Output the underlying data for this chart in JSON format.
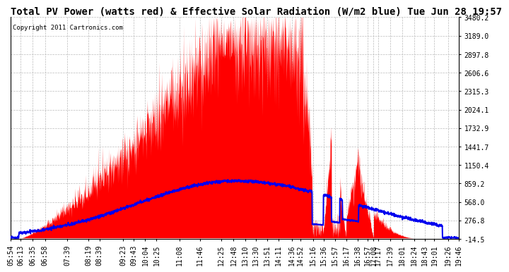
{
  "title": "Total PV Power (watts red) & Effective Solar Radiation (W/m2 blue) Tue Jun 28 19:57",
  "copyright_text": "Copyright 2011 Cartronics.com",
  "ymin": -14.5,
  "ymax": 3480.2,
  "yticks": [
    3480.2,
    3189.0,
    2897.8,
    2606.6,
    2315.3,
    2024.1,
    1732.9,
    1441.7,
    1150.4,
    859.2,
    568.0,
    276.8,
    -14.5
  ],
  "xtick_labels": [
    "05:54",
    "06:13",
    "06:35",
    "06:58",
    "07:39",
    "08:19",
    "08:39",
    "09:23",
    "09:43",
    "10:04",
    "10:25",
    "11:08",
    "11:46",
    "12:25",
    "12:48",
    "13:10",
    "13:30",
    "13:51",
    "14:11",
    "14:36",
    "14:52",
    "15:16",
    "15:36",
    "15:57",
    "16:17",
    "16:38",
    "16:57",
    "17:08",
    "17:17",
    "17:39",
    "18:01",
    "18:24",
    "18:43",
    "19:01",
    "19:26",
    "19:46"
  ],
  "background_color": "#ffffff",
  "grid_color": "#bbbbbb",
  "red_color": "#ff0000",
  "blue_color": "#0000ee",
  "title_fontsize": 10,
  "tick_fontsize": 7,
  "copyright_fontsize": 6.5
}
